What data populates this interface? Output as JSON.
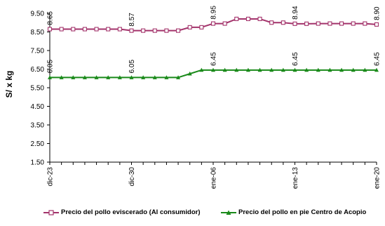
{
  "chart_data": {
    "type": "line",
    "ylabel": "S/ x kg",
    "ylim": [
      1.5,
      9.5
    ],
    "yticks": [
      "1.50",
      "2.50",
      "3.50",
      "4.50",
      "5.50",
      "6.50",
      "7.50",
      "8.50",
      "9.50"
    ],
    "x_tick_labels": [
      "dic-23",
      "dic-30",
      "ene-06",
      "ene-13",
      "ene-20"
    ],
    "grid": false,
    "legend_position": "bottom",
    "series": [
      {
        "name": "Precio del pollo eviscerado (Al consumidor)",
        "color": "#a3336b",
        "marker": "square-open",
        "values": [
          8.65,
          8.65,
          8.65,
          8.65,
          8.65,
          8.65,
          8.65,
          8.57,
          8.57,
          8.57,
          8.57,
          8.57,
          8.75,
          8.75,
          8.95,
          8.95,
          9.2,
          9.2,
          9.2,
          9.0,
          9.0,
          8.94,
          8.94,
          8.95,
          8.95,
          8.95,
          8.95,
          8.95,
          8.9
        ],
        "data_labels": [
          {
            "index": 0,
            "text": "8.65"
          },
          {
            "index": 7,
            "text": "8.57"
          },
          {
            "index": 14,
            "text": "8.95"
          },
          {
            "index": 21,
            "text": "8.94"
          },
          {
            "index": 28,
            "text": "8.90"
          }
        ]
      },
      {
        "name": "Precio del pollo en pie Centro de Acopio",
        "color": "#1a8a1a",
        "marker": "triangle",
        "values": [
          6.05,
          6.05,
          6.05,
          6.05,
          6.05,
          6.05,
          6.05,
          6.05,
          6.05,
          6.05,
          6.05,
          6.05,
          6.25,
          6.45,
          6.45,
          6.45,
          6.45,
          6.45,
          6.45,
          6.45,
          6.45,
          6.45,
          6.45,
          6.45,
          6.45,
          6.45,
          6.45,
          6.45,
          6.45
        ],
        "data_labels": [
          {
            "index": 0,
            "text": "6.05"
          },
          {
            "index": 7,
            "text": "6.05"
          },
          {
            "index": 14,
            "text": "6.45"
          },
          {
            "index": 21,
            "text": "6.45"
          },
          {
            "index": 28,
            "text": "6.45"
          }
        ]
      }
    ]
  }
}
